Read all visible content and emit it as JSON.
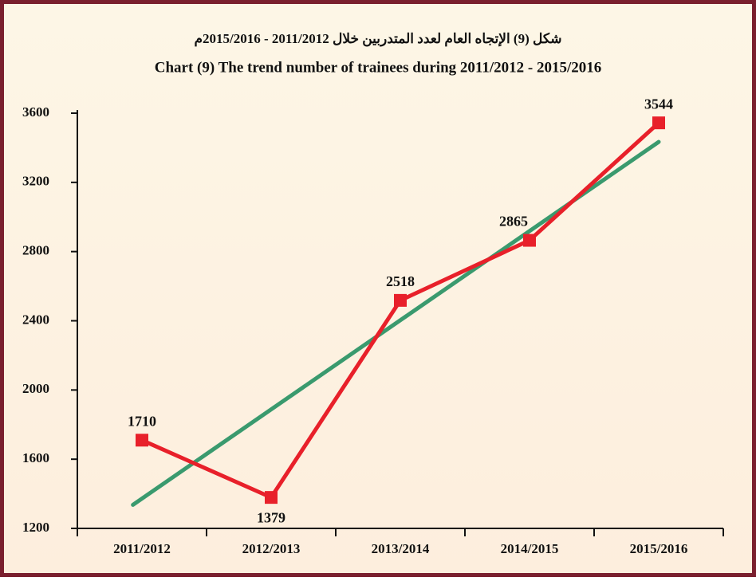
{
  "chart_data": {
    "type": "line",
    "title": "شكل (9) الإتجاه العام لعدد المتدربين خلال 2011/2012 - 2015/2016م",
    "subtitle": "Chart (9) The trend number of trainees during  2011/2012 - 2015/2016",
    "categories": [
      "2011/2012",
      "2012/2013",
      "2013/2014",
      "2014/2015",
      "2015/2016"
    ],
    "series": [
      {
        "color": "#e8202a",
        "values": [
          1710,
          1379,
          2518,
          2865,
          3544
        ]
      }
    ],
    "ylim": [
      1200,
      3600
    ],
    "yticks": [
      1200,
      1600,
      2000,
      2400,
      2800,
      3200,
      3600
    ],
    "trendline": {
      "type": "linear",
      "color": "#3a9a6e"
    },
    "grid": false
  }
}
